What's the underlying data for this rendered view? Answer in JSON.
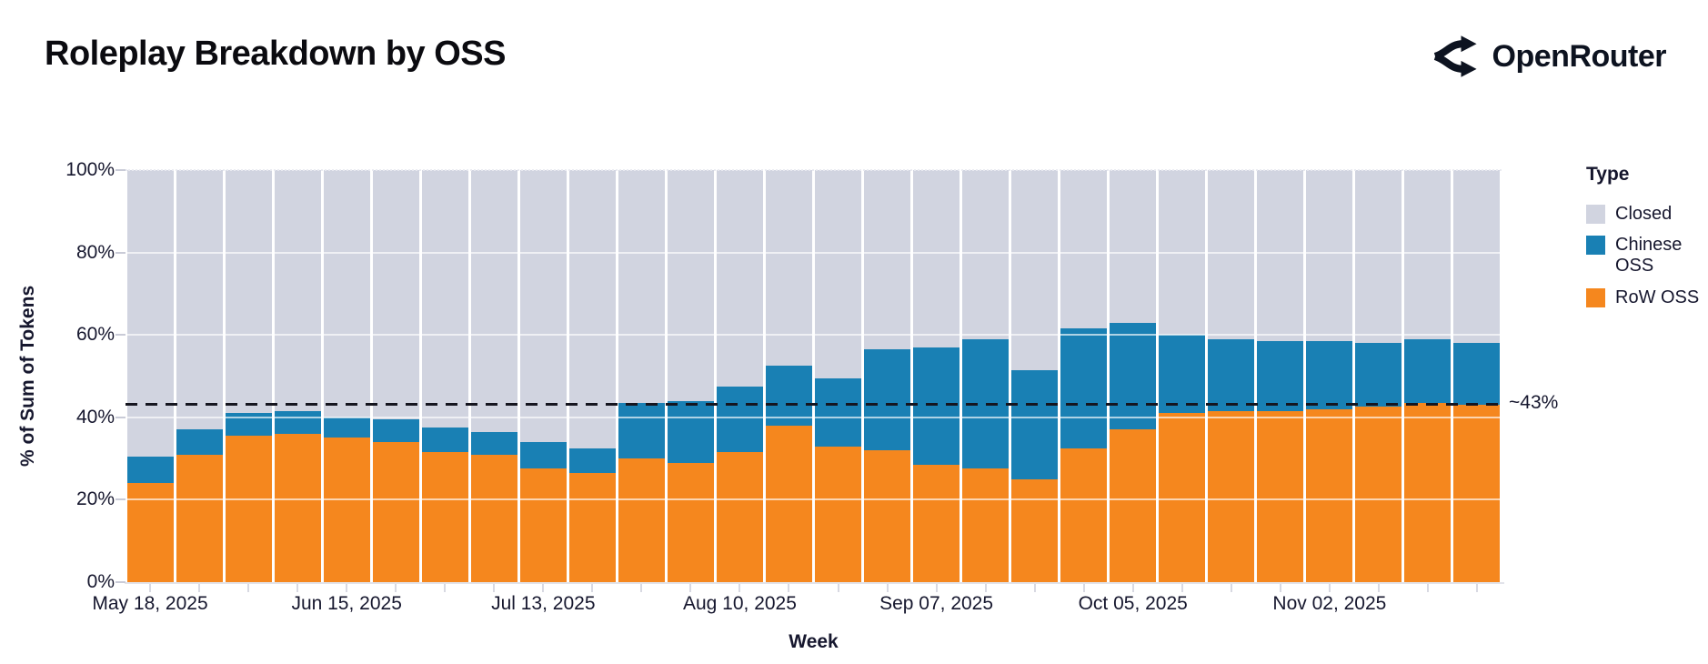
{
  "header": {
    "title": "Roleplay Breakdown by OSS",
    "brand": "OpenRouter"
  },
  "colors": {
    "closed": "#D1D4E0",
    "chinese_oss": "#1980B4",
    "row_oss": "#F5871E",
    "axis_text": "#16172E",
    "tick_mark": "#C9CBD7",
    "reference_line": "#15151F",
    "gridline": "rgba(255,255,255,0.65)"
  },
  "legend": {
    "title": "Type",
    "items": [
      {
        "label": "Closed",
        "color": "#D1D4E0"
      },
      {
        "label": "Chinese OSS",
        "color": "#1980B4"
      },
      {
        "label": "RoW OSS",
        "color": "#F5871E"
      }
    ]
  },
  "reference_line": {
    "label": "~43%",
    "value": 43
  },
  "chart_data": {
    "type": "bar",
    "stacked": true,
    "normalized_to": 100,
    "title": "Roleplay Breakdown by OSS",
    "xlabel": "Week",
    "ylabel": "% of Sum of Tokens",
    "ylim": [
      0,
      100
    ],
    "y_ticks": [
      0,
      20,
      40,
      60,
      80,
      100
    ],
    "grid": "horizontal-white-on-bars",
    "legend_position": "right",
    "x": [
      "May 18, 2025",
      "May 25, 2025",
      "Jun 01, 2025",
      "Jun 08, 2025",
      "Jun 15, 2025",
      "Jun 22, 2025",
      "Jun 29, 2025",
      "Jul 06, 2025",
      "Jul 13, 2025",
      "Jul 20, 2025",
      "Jul 27, 2025",
      "Aug 03, 2025",
      "Aug 10, 2025",
      "Aug 17, 2025",
      "Aug 24, 2025",
      "Aug 31, 2025",
      "Sep 07, 2025",
      "Sep 14, 2025",
      "Sep 21, 2025",
      "Sep 28, 2025",
      "Oct 05, 2025",
      "Oct 12, 2025",
      "Oct 19, 2025",
      "Oct 26, 2025",
      "Nov 02, 2025",
      "Nov 09, 2025",
      "Nov 16, 2025",
      "Nov 23, 2025"
    ],
    "x_tick_indices": [
      0,
      4,
      8,
      12,
      16,
      20,
      24
    ],
    "series": [
      {
        "name": "RoW OSS",
        "color": "#F5871E",
        "values": [
          24,
          31,
          35.5,
          36,
          35,
          34,
          31.5,
          31,
          27.5,
          26.5,
          30,
          29,
          31.5,
          38,
          33,
          32,
          28.5,
          27.5,
          25,
          32.5,
          37,
          41,
          41.5,
          41.5,
          42,
          42.5,
          43.5,
          43
        ]
      },
      {
        "name": "Chinese OSS",
        "color": "#1980B4",
        "values": [
          6.5,
          6,
          5.5,
          5.5,
          5,
          5.5,
          6,
          5.5,
          6.5,
          6,
          13.5,
          15,
          16,
          14.5,
          16.5,
          24.5,
          28.5,
          31.5,
          26.5,
          29,
          26,
          19,
          17.5,
          17,
          16.5,
          15.5,
          15.5,
          15
        ]
      },
      {
        "name": "Closed",
        "color": "#D1D4E0",
        "values": [
          69.5,
          63,
          59,
          58.5,
          60,
          60.5,
          62.5,
          63.5,
          66,
          67.5,
          56.5,
          56,
          52.5,
          47.5,
          50.5,
          43.5,
          43,
          41,
          48.5,
          38.5,
          37,
          40,
          41,
          41.5,
          41.5,
          42,
          41,
          42
        ]
      }
    ]
  }
}
